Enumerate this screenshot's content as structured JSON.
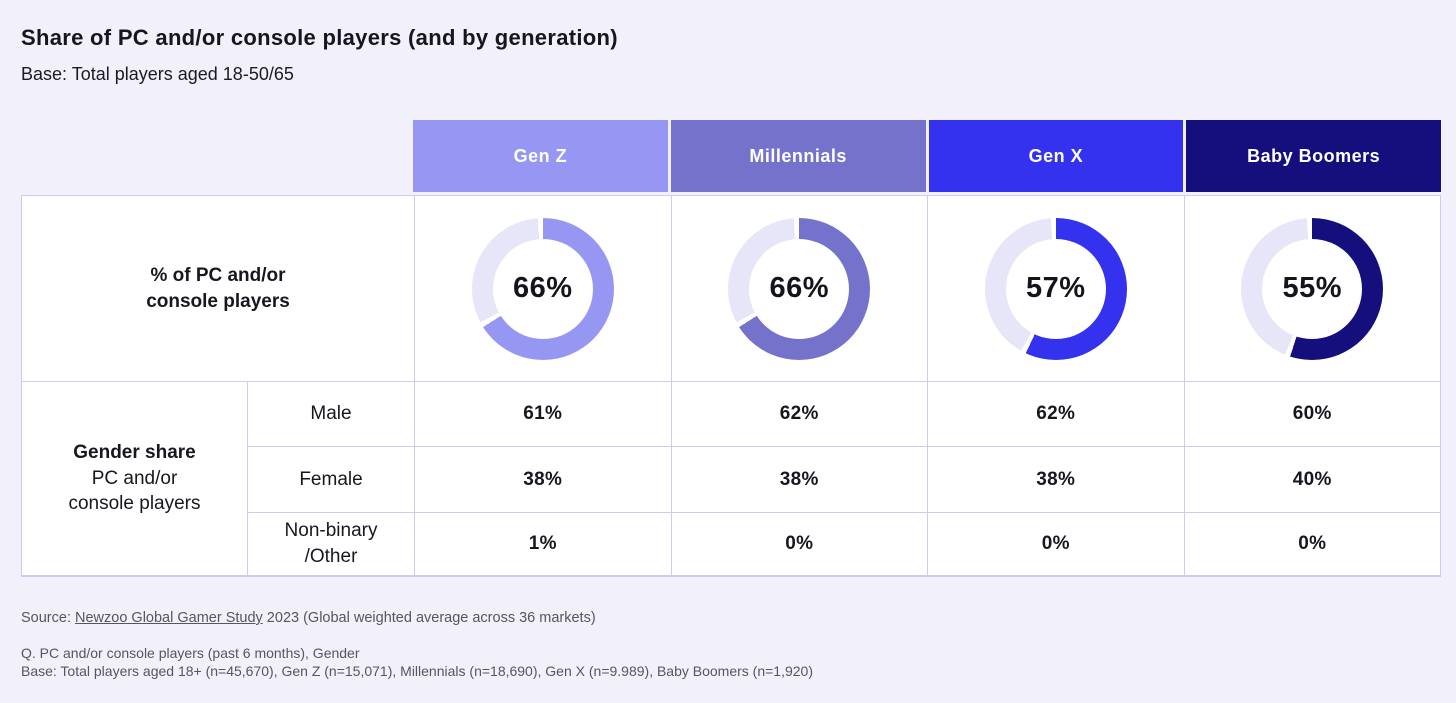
{
  "header": {
    "title": "Share of PC and/or console players (and by generation)",
    "subtitle": "Base: Total players aged 18-50/65"
  },
  "table": {
    "row1_label": "% of PC and/or\nconsole players",
    "gender_label_bold": "Gender share",
    "gender_label_rest": "PC and/or\nconsole players",
    "row_labels": [
      "Male",
      "Female",
      "Non-binary\n/Other"
    ],
    "track_color": "#E7E6F8",
    "columns": [
      {
        "label": "Gen Z",
        "color": "#9697F2",
        "share": "66%",
        "share_value": 66,
        "male": "61%",
        "female": "38%",
        "nonbinary": "1%"
      },
      {
        "label": "Millennials",
        "color": "#7472CB",
        "share": "66%",
        "share_value": 66,
        "male": "62%",
        "female": "38%",
        "nonbinary": "0%"
      },
      {
        "label": "Gen X",
        "color": "#3432EE",
        "share": "57%",
        "share_value": 57,
        "male": "62%",
        "female": "38%",
        "nonbinary": "0%"
      },
      {
        "label": "Baby Boomers",
        "color": "#140F7C",
        "share": "55%",
        "share_value": 55,
        "male": "60%",
        "female": "40%",
        "nonbinary": "0%"
      }
    ]
  },
  "footer": {
    "source_prefix": "Source: ",
    "source_link": "Newzoo Global Gamer Study",
    "source_suffix": " 2023 (Global weighted average across 36 markets)",
    "q_line": "Q. PC and/or console players (past 6 months), Gender",
    "base_line": "Base: Total players aged 18+ (n=45,670), Gen Z (n=15,071), Millennials (n=18,690), Gen X (n=9.989), Baby Boomers (n=1,920)"
  },
  "chart_data": {
    "type": "table",
    "title": "Share of PC and/or console players (and by generation)",
    "subtitle": "Base: Total players aged 18-50/65",
    "categories": [
      "Gen Z",
      "Millennials",
      "Gen X",
      "Baby Boomers"
    ],
    "series": [
      {
        "name": "% of PC and/or console players",
        "display": "donut",
        "unit": "%",
        "values": [
          66,
          66,
          57,
          55
        ]
      },
      {
        "name": "Gender share PC and/or console players - Male",
        "unit": "%",
        "values": [
          61,
          62,
          62,
          60
        ]
      },
      {
        "name": "Gender share PC and/or console players - Female",
        "unit": "%",
        "values": [
          38,
          38,
          38,
          40
        ]
      },
      {
        "name": "Gender share PC and/or console players - Non-binary/Other",
        "unit": "%",
        "values": [
          1,
          0,
          0,
          0
        ]
      }
    ],
    "colors": {
      "Gen Z": "#9697F2",
      "Millennials": "#7472CB",
      "Gen X": "#3432EE",
      "Baby Boomers": "#140F7C",
      "donut_track": "#E7E6F8"
    },
    "legend_position": "none",
    "grid": false
  }
}
